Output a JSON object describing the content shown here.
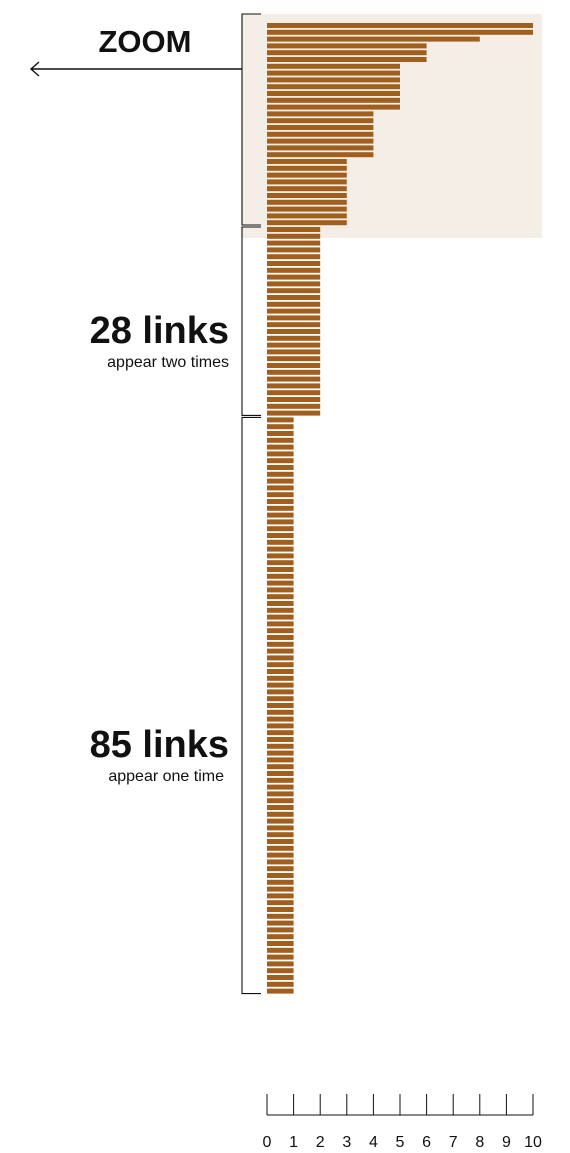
{
  "colors": {
    "bar": "#A15F1F",
    "zoom_panel": "#F4EEE6",
    "ink": "#111111"
  },
  "annotations": {
    "zoom_label": "ZOOM",
    "group_two": {
      "count": "28 links",
      "desc": "appear two times"
    },
    "group_one": {
      "count": "85 links",
      "desc": "appear one time"
    }
  },
  "chart_data": {
    "type": "bar",
    "orientation": "horizontal",
    "xlim": [
      0,
      10
    ],
    "x_ticks": [
      0,
      1,
      2,
      3,
      4,
      5,
      6,
      7,
      8,
      9,
      10
    ],
    "values": [
      10,
      10,
      8,
      6,
      6,
      6,
      5,
      5,
      5,
      5,
      5,
      5,
      5,
      4,
      4,
      4,
      4,
      4,
      4,
      4,
      3,
      3,
      3,
      3,
      3,
      3,
      3,
      3,
      3,
      3,
      2,
      2,
      2,
      2,
      2,
      2,
      2,
      2,
      2,
      2,
      2,
      2,
      2,
      2,
      2,
      2,
      2,
      2,
      2,
      2,
      2,
      2,
      2,
      2,
      2,
      2,
      2,
      2,
      1,
      1,
      1,
      1,
      1,
      1,
      1,
      1,
      1,
      1,
      1,
      1,
      1,
      1,
      1,
      1,
      1,
      1,
      1,
      1,
      1,
      1,
      1,
      1,
      1,
      1,
      1,
      1,
      1,
      1,
      1,
      1,
      1,
      1,
      1,
      1,
      1,
      1,
      1,
      1,
      1,
      1,
      1,
      1,
      1,
      1,
      1,
      1,
      1,
      1,
      1,
      1,
      1,
      1,
      1,
      1,
      1,
      1,
      1,
      1,
      1,
      1,
      1,
      1,
      1,
      1,
      1,
      1,
      1,
      1,
      1,
      1,
      1,
      1,
      1,
      1,
      1,
      1,
      1,
      1,
      1,
      1,
      1,
      1,
      1
    ],
    "grid": false,
    "legend": "none"
  }
}
